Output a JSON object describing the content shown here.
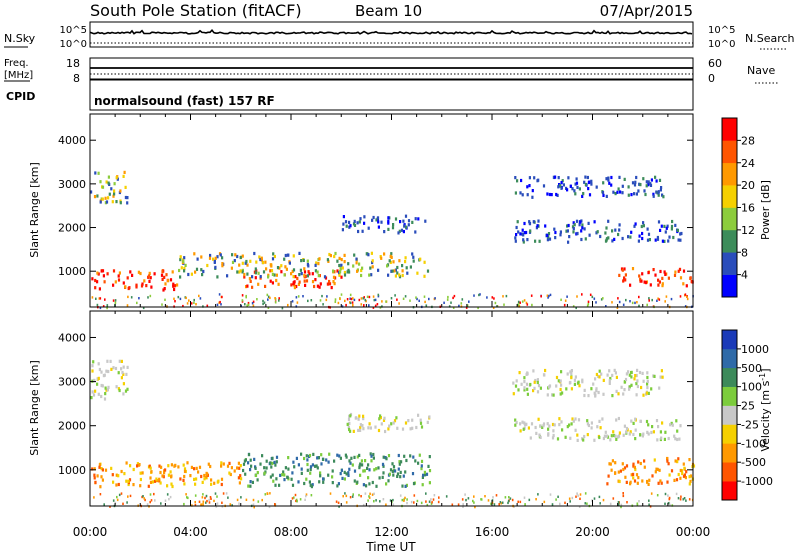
{
  "header": {
    "title": "South Pole Station (fitACF)",
    "beam": "Beam 10",
    "date": "07/Apr/2015"
  },
  "nsky": {
    "label": "N.Sky",
    "ticks": [
      "10^5",
      "10^0"
    ],
    "right_label": "N.Search",
    "right_ticks": [
      "10^5",
      "10^0"
    ]
  },
  "freq": {
    "label_line1": "Freq.",
    "label_line2": "[MHz]",
    "ticks": [
      "18",
      "8"
    ],
    "right_label": "Nave",
    "right_ticks": [
      "60",
      "0"
    ]
  },
  "cpid": {
    "label": "CPID",
    "text": "normalsound (fast) 157 RF"
  },
  "chart_data": [
    {
      "type": "heatmap",
      "title": "",
      "quantity": "Power",
      "xlabel": "Time UT",
      "ylabel": "Slant Range [km]",
      "x_ticks": [
        "00:00",
        "04:00",
        "08:00",
        "12:00",
        "16:00",
        "20:00",
        "00:00"
      ],
      "xlim_hours": [
        0,
        24
      ],
      "y_ticks": [
        1000,
        2000,
        3000,
        4000
      ],
      "ylim": [
        180,
        4600
      ],
      "colorbar_label": "Power [dB]",
      "colorbar_ticks": [
        4,
        8,
        12,
        16,
        20,
        24,
        28
      ],
      "colorbar_colors": [
        "#0000ff",
        "#2a4dbb",
        "#3c8c5a",
        "#8ccc3c",
        "#f5d000",
        "#ff9900",
        "#ff5500",
        "#ff0000"
      ],
      "regions": [
        {
          "start_h": 0.0,
          "end_h": 3.5,
          "range_km": [
            600,
            1050
          ],
          "level": "high"
        },
        {
          "start_h": 6.0,
          "end_h": 10.0,
          "range_km": [
            650,
            1050
          ],
          "level": "high"
        },
        {
          "start_h": 3.5,
          "end_h": 13.5,
          "range_km": [
            900,
            1450
          ],
          "level": "medium"
        },
        {
          "start_h": 0.0,
          "end_h": 1.5,
          "range_km": [
            2600,
            3300
          ],
          "level": "medium"
        },
        {
          "start_h": 10.0,
          "end_h": 13.5,
          "range_km": [
            1900,
            2300
          ],
          "level": "low"
        },
        {
          "start_h": 16.8,
          "end_h": 23.5,
          "range_km": [
            1700,
            2200
          ],
          "level": "low"
        },
        {
          "start_h": 16.8,
          "end_h": 22.8,
          "range_km": [
            2700,
            3200
          ],
          "level": "low"
        },
        {
          "start_h": 21.0,
          "end_h": 24.0,
          "range_km": [
            700,
            1100
          ],
          "level": "high"
        }
      ]
    },
    {
      "type": "heatmap",
      "title": "",
      "quantity": "Velocity",
      "xlabel": "Time UT",
      "ylabel": "Slant Range [km]",
      "x_ticks": [
        "00:00",
        "04:00",
        "08:00",
        "12:00",
        "16:00",
        "20:00",
        "00:00"
      ],
      "xlim_hours": [
        0,
        24
      ],
      "y_ticks": [
        1000,
        2000,
        3000,
        4000
      ],
      "ylim": [
        180,
        4600
      ],
      "colorbar_label": "Velocity [m s",
      "colorbar_label_sup": "-1",
      "colorbar_label_end": "]",
      "colorbar_ticks": [
        "1000",
        "500",
        "100",
        "25",
        "-25",
        "-100",
        "-500",
        "-1000"
      ],
      "colorbar_colors": [
        "#1a3ab8",
        "#2f6aa8",
        "#3c8a5a",
        "#7ccc3c",
        "#c8c8c8",
        "#f5d000",
        "#ff9900",
        "#ff5500",
        "#ff0000"
      ],
      "regions": [
        {
          "start_h": 0.0,
          "end_h": 6.0,
          "range_km": [
            650,
            1200
          ],
          "level": "toward_fast"
        },
        {
          "start_h": 6.0,
          "end_h": 13.5,
          "range_km": [
            650,
            1400
          ],
          "level": "away_slow"
        },
        {
          "start_h": 0.0,
          "end_h": 1.5,
          "range_km": [
            2600,
            3500
          ],
          "level": "zero"
        },
        {
          "start_h": 10.0,
          "end_h": 13.5,
          "range_km": [
            1900,
            2300
          ],
          "level": "zero"
        },
        {
          "start_h": 16.8,
          "end_h": 23.5,
          "range_km": [
            1700,
            2200
          ],
          "level": "zero"
        },
        {
          "start_h": 16.8,
          "end_h": 22.8,
          "range_km": [
            2700,
            3300
          ],
          "level": "zero"
        },
        {
          "start_h": 20.5,
          "end_h": 24.0,
          "range_km": [
            700,
            1300
          ],
          "level": "toward_fast"
        }
      ]
    }
  ]
}
